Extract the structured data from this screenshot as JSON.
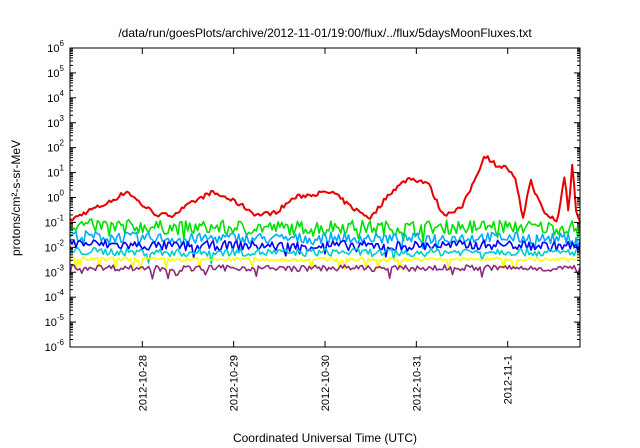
{
  "chart_data": {
    "type": "line",
    "title": "/data/run/goesPlots/archive/2012-11-01/19:00/flux/../flux/5daysMoonFluxes.txt",
    "xlabel": "Coordinated Universal Time (UTC)",
    "ylabel": "protons/cm²-s-sr-MeV",
    "yscale": "log",
    "ylim": [
      1e-06,
      1000000.0
    ],
    "xlim": [
      "2012-10-27T05:00",
      "2012-11-01T19:00"
    ],
    "grid": false,
    "legend": "none",
    "x_ticks": [
      {
        "value": "2012-10-28T00:00",
        "label": "2012-10-28"
      },
      {
        "value": "2012-10-29T00:00",
        "label": "2012-10-29"
      },
      {
        "value": "2012-10-30T00:00",
        "label": "2012-10-30"
      },
      {
        "value": "2012-10-31T00:00",
        "label": "2012-10-31"
      },
      {
        "value": "2012-11-01T00:00",
        "label": "2012-11-1"
      }
    ],
    "y_ticks": [
      {
        "exp": 6,
        "label_base": "10",
        "label_exp": "6"
      },
      {
        "exp": 5,
        "label_base": "10",
        "label_exp": "5"
      },
      {
        "exp": 4,
        "label_base": "10",
        "label_exp": "4"
      },
      {
        "exp": 3,
        "label_base": "10",
        "label_exp": "3"
      },
      {
        "exp": 2,
        "label_base": "10",
        "label_exp": "2"
      },
      {
        "exp": 1,
        "label_base": "10",
        "label_exp": "1"
      },
      {
        "exp": 0,
        "label_base": "10",
        "label_exp": "0"
      },
      {
        "exp": -1,
        "label_base": "10",
        "label_exp": "-1"
      },
      {
        "exp": -2,
        "label_base": "10",
        "label_exp": "-2"
      },
      {
        "exp": -3,
        "label_base": "10",
        "label_exp": "-3"
      },
      {
        "exp": -4,
        "label_base": "10",
        "label_exp": "-4"
      },
      {
        "exp": -5,
        "label_base": "10",
        "label_exp": "-5"
      },
      {
        "exp": -6,
        "label_base": "10",
        "label_exp": "-6"
      }
    ],
    "series": [
      {
        "color": "#e80000",
        "x": [
          "2012-10-27T05:00",
          "2012-10-27T10:00",
          "2012-10-27T15:00",
          "2012-10-27T20:00",
          "2012-10-28T00:00",
          "2012-10-28T04:00",
          "2012-10-28T08:00",
          "2012-10-28T13:00",
          "2012-10-28T18:00",
          "2012-10-28T22:00",
          "2012-10-29T02:00",
          "2012-10-29T06:00",
          "2012-10-29T11:00",
          "2012-10-29T16:00",
          "2012-10-29T21:00",
          "2012-10-30T02:00",
          "2012-10-30T07:00",
          "2012-10-30T12:00",
          "2012-10-30T17:00",
          "2012-10-30T22:00",
          "2012-10-31T03:00",
          "2012-10-31T07:00",
          "2012-10-31T12:00",
          "2012-10-31T15:00",
          "2012-10-31T18:00",
          "2012-10-31T21:00",
          "2012-11-01T00:00",
          "2012-11-01T02:00",
          "2012-11-01T04:00",
          "2012-11-01T06:00",
          "2012-11-01T08:00",
          "2012-11-01T10:00",
          "2012-11-01T12:00",
          "2012-11-01T13:00",
          "2012-11-01T14:00",
          "2012-11-01T15:00",
          "2012-11-01T16:00",
          "2012-11-01T17:00",
          "2012-11-01T18:00",
          "2012-11-01T19:00"
        ],
        "values": [
          0.12,
          0.3,
          0.6,
          1.8,
          0.5,
          0.2,
          0.2,
          0.6,
          1.6,
          1.0,
          0.5,
          0.2,
          0.25,
          1.0,
          1.4,
          1.6,
          0.4,
          0.15,
          1.5,
          6.0,
          4.0,
          0.2,
          0.4,
          4.0,
          50,
          20,
          15,
          5,
          0.15,
          5,
          0.8,
          0.2,
          0.15,
          0.1,
          0.8,
          10,
          0.2,
          30,
          0.3,
          0.1
        ]
      },
      {
        "color": "#00e000",
        "x": [
          "2012-10-27T05:00",
          "2012-10-27T20:00",
          "2012-10-28T10:00",
          "2012-10-29T00:00",
          "2012-10-29T14:00",
          "2012-10-30T04:00",
          "2012-10-30T18:00",
          "2012-10-31T08:00",
          "2012-10-31T22:00",
          "2012-11-01T12:00",
          "2012-11-01T19:00"
        ],
        "values": [
          0.08,
          0.07,
          0.06,
          0.065,
          0.06,
          0.07,
          0.06,
          0.065,
          0.07,
          0.06,
          0.065
        ]
      },
      {
        "color": "#00aaff",
        "x": [
          "2012-10-27T05:00",
          "2012-10-27T20:00",
          "2012-10-28T10:00",
          "2012-10-29T00:00",
          "2012-10-29T14:00",
          "2012-10-30T04:00",
          "2012-10-30T18:00",
          "2012-10-31T08:00",
          "2012-10-31T22:00",
          "2012-11-01T12:00",
          "2012-11-01T19:00"
        ],
        "values": [
          0.03,
          0.025,
          0.022,
          0.024,
          0.022,
          0.025,
          0.022,
          0.024,
          0.025,
          0.022,
          0.024
        ]
      },
      {
        "color": "#0000ff",
        "x": [
          "2012-10-27T05:00",
          "2012-10-27T20:00",
          "2012-10-28T10:00",
          "2012-10-29T00:00",
          "2012-10-29T14:00",
          "2012-10-30T04:00",
          "2012-10-30T18:00",
          "2012-10-31T08:00",
          "2012-10-31T22:00",
          "2012-11-01T12:00",
          "2012-11-01T19:00"
        ],
        "values": [
          0.015,
          0.012,
          0.011,
          0.012,
          0.011,
          0.012,
          0.011,
          0.012,
          0.013,
          0.011,
          0.012
        ]
      },
      {
        "color": "#00cccc",
        "x": [
          "2012-10-27T05:00",
          "2012-10-27T20:00",
          "2012-10-28T10:00",
          "2012-10-29T00:00",
          "2012-10-29T14:00",
          "2012-10-30T04:00",
          "2012-10-30T18:00",
          "2012-10-31T08:00",
          "2012-10-31T22:00",
          "2012-11-01T12:00",
          "2012-11-01T19:00"
        ],
        "values": [
          0.007,
          0.0065,
          0.006,
          0.0065,
          0.006,
          0.0065,
          0.006,
          0.0065,
          0.007,
          0.006,
          0.0065
        ]
      },
      {
        "color": "#ffff00",
        "x": [
          "2012-10-27T05:00",
          "2012-10-27T20:00",
          "2012-10-28T10:00",
          "2012-10-29T00:00",
          "2012-10-29T14:00",
          "2012-10-30T04:00",
          "2012-10-30T18:00",
          "2012-10-31T08:00",
          "2012-10-31T22:00",
          "2012-11-01T12:00",
          "2012-11-01T19:00"
        ],
        "values": [
          0.0035,
          0.0033,
          0.0032,
          0.0033,
          0.0032,
          0.0033,
          0.0032,
          0.0033,
          0.0034,
          0.0032,
          0.0033
        ]
      },
      {
        "color": "#8b2c7a",
        "x": [
          "2012-10-27T05:00",
          "2012-10-27T20:00",
          "2012-10-28T10:00",
          "2012-10-29T00:00",
          "2012-10-29T14:00",
          "2012-10-30T04:00",
          "2012-10-30T18:00",
          "2012-10-31T08:00",
          "2012-10-31T22:00",
          "2012-11-01T12:00",
          "2012-11-01T19:00"
        ],
        "values": [
          0.0016,
          0.0015,
          0.0014,
          0.0015,
          0.0014,
          0.0015,
          0.0014,
          0.0015,
          0.0015,
          0.0014,
          0.0015
        ]
      }
    ]
  }
}
